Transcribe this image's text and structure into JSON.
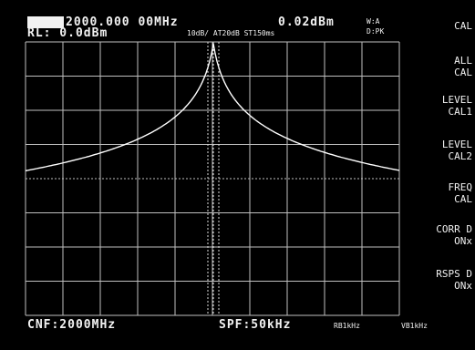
{
  "header": {
    "marker_label": "",
    "center_freq_readout": "2000.000 00MHz",
    "marker_level": "0.02dBm",
    "trace_mode": "W:A",
    "detector": "D:PK",
    "ref_level": "RL: 0.0dBm",
    "settings": "10dB/ AT20dB ST150ms"
  },
  "footer": {
    "center_freq": "CNF:2000MHz",
    "span": "SPF:50kHz",
    "rbw": "RB1kHz",
    "vbw": "VB1kHz"
  },
  "softkeys": [
    {
      "line1": "CAL",
      "line2": ""
    },
    {
      "line1": "ALL",
      "line2": "CAL"
    },
    {
      "line1": "LEVEL",
      "line2": "CAL1"
    },
    {
      "line1": "LEVEL",
      "line2": "CAL2"
    },
    {
      "line1": "FREQ",
      "line2": "CAL"
    },
    {
      "line1": "CORR D",
      "line2": "ONx"
    },
    {
      "line1": "RSPS D",
      "line2": "ONx"
    }
  ],
  "colors": {
    "background": "#000000",
    "trace": "#ffffff",
    "grid": "#bfbfbf"
  }
}
